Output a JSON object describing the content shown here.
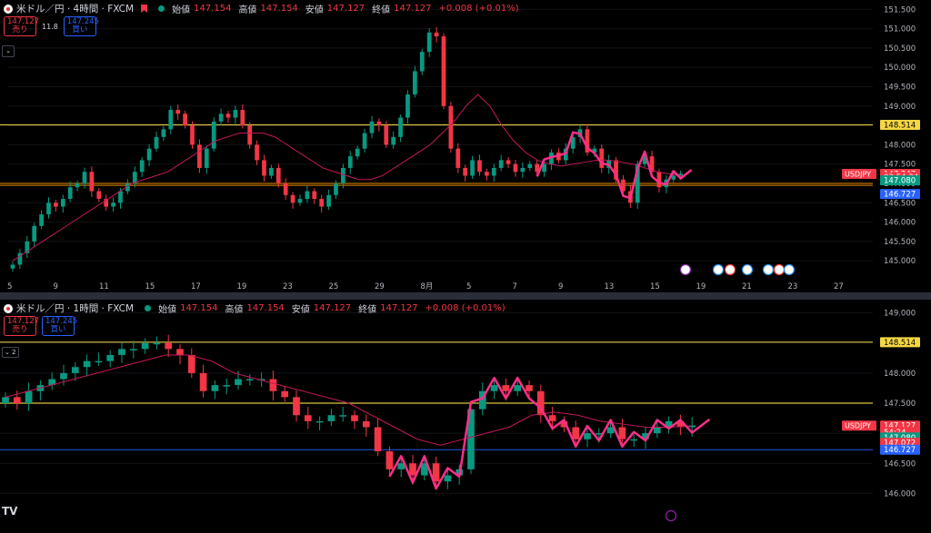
{
  "colors": {
    "up": "#089981",
    "down": "#f23645",
    "ma": "#c2185b",
    "hline_yellow": "#f5d742",
    "hline_orange": "#ff9800",
    "hline_blue": "#2962ff",
    "drawing": "#ff2d8a",
    "bg": "#000000",
    "axis_text": "#b2b5be"
  },
  "top_pane": {
    "symbol": "米ドル／円 · 4時間 · FXCM",
    "ohlc": [
      {
        "label": "始値",
        "value": "147.154"
      },
      {
        "label": "高値",
        "value": "147.154"
      },
      {
        "label": "安値",
        "value": "147.127"
      },
      {
        "label": "終値",
        "value": "147.127"
      },
      {
        "label": "",
        "value": "+0.008 (+0.01%)"
      }
    ],
    "sell_price": "147.127",
    "sell_label": "売り",
    "spread": "11.8",
    "buy_price": "147.245",
    "buy_label": "買い",
    "collapse": "⌄",
    "price_ticks": [
      "151.500",
      "151.000",
      "150.500",
      "150.000",
      "149.500",
      "149.000",
      "148.500",
      "148.000",
      "147.500",
      "147.000",
      "146.500",
      "146.000",
      "145.500",
      "145.000"
    ],
    "date_ticks": [
      "5",
      "9",
      "11",
      "15",
      "17",
      "19",
      "23",
      "25",
      "29",
      "8月",
      "5",
      "7",
      "9",
      "13",
      "15",
      "19",
      "21",
      "23",
      "27"
    ],
    "price_tags": [
      {
        "text": "148.514",
        "kind": "yellow",
        "price": 148.514
      },
      {
        "text": "147.247",
        "kind": "red",
        "price": 147.247
      },
      {
        "text": "03:54:24",
        "kind": "red-sub",
        "price": 147.16
      },
      {
        "text": "147.080",
        "kind": "green",
        "price": 147.08
      },
      {
        "text": "146.727",
        "kind": "blue",
        "price": 146.727
      }
    ],
    "symbol_tag": "USDJPY"
  },
  "bottom_pane": {
    "symbol": "米ドル／円 · 1時間 · FXCM",
    "ohlc": [
      {
        "label": "始値",
        "value": "147.154"
      },
      {
        "label": "高値",
        "value": "147.154"
      },
      {
        "label": "安値",
        "value": "147.127"
      },
      {
        "label": "終値",
        "value": "147.127"
      },
      {
        "label": "",
        "value": "+0.008 (+0.01%)"
      }
    ],
    "sell_price": "147.127",
    "sell_label": "売り",
    "buy_price": "147.245",
    "buy_label": "買い",
    "collapse": "⌄ 2",
    "price_ticks": [
      "149.000",
      "148.500",
      "148.000",
      "147.500",
      "147.000",
      "146.500",
      "146.000"
    ],
    "price_tags": [
      {
        "text": "148.514",
        "kind": "yellow",
        "price": 148.514
      },
      {
        "text": "147.127",
        "kind": "red",
        "price": 147.127
      },
      {
        "text": "54:24",
        "kind": "red-sub",
        "price": 147.02
      },
      {
        "text": "147.080",
        "kind": "green",
        "price": 146.93
      },
      {
        "text": "147.072",
        "kind": "red",
        "price": 146.84
      },
      {
        "text": "146.727",
        "kind": "blue",
        "price": 146.727
      }
    ],
    "symbol_tag": "USDJPY",
    "logo": "TV"
  },
  "chart_data": [
    {
      "type": "candlestick",
      "title": "米ドル／円 · 4時間 · FXCM",
      "ylim": [
        144.7,
        151.6
      ],
      "hlines": [
        {
          "price": 148.514,
          "color": "yellow"
        },
        {
          "price": 147.0,
          "color": "orange"
        },
        {
          "price": 146.95,
          "color": "orange"
        }
      ],
      "closes": [
        144.9,
        145.2,
        145.5,
        145.9,
        146.2,
        146.5,
        146.4,
        146.6,
        146.9,
        147.0,
        147.3,
        146.8,
        146.6,
        146.4,
        146.5,
        146.8,
        147.0,
        147.3,
        147.6,
        147.9,
        148.2,
        148.4,
        148.9,
        148.8,
        148.5,
        148.0,
        147.4,
        147.9,
        148.6,
        148.8,
        148.7,
        148.9,
        148.5,
        148.0,
        147.6,
        147.2,
        147.4,
        147.0,
        146.7,
        146.5,
        146.6,
        146.8,
        146.6,
        146.4,
        146.7,
        147.0,
        147.4,
        147.7,
        147.9,
        148.3,
        148.6,
        148.5,
        148.0,
        148.2,
        148.7,
        149.3,
        149.9,
        150.4,
        150.9,
        150.8,
        149.0,
        147.9,
        147.4,
        147.2,
        147.6,
        147.3,
        147.2,
        147.4,
        147.6,
        147.5,
        147.3,
        147.4,
        147.5,
        147.3,
        147.5,
        147.8,
        147.6,
        147.9,
        148.2,
        148.4,
        147.8,
        147.9,
        147.4,
        147.6,
        147.1,
        146.8,
        146.5,
        147.5,
        147.7,
        147.3,
        146.9,
        147.1,
        147.2,
        147.25
      ],
      "ma": [
        145.0,
        145.2,
        145.4,
        145.6,
        145.8,
        146.0,
        146.2,
        146.4,
        146.6,
        146.8,
        147.0,
        147.1,
        147.2,
        147.3,
        147.5,
        147.7,
        147.9,
        148.1,
        148.2,
        148.3,
        148.3,
        148.3,
        148.2,
        148.0,
        147.8,
        147.6,
        147.4,
        147.3,
        147.2,
        147.1,
        147.1,
        147.2,
        147.4,
        147.6,
        147.8,
        148.0,
        148.3,
        148.6,
        149.0,
        149.3,
        149.0,
        148.5,
        148.1,
        147.8,
        147.6,
        147.5,
        147.45,
        147.5,
        147.55,
        147.6,
        147.6,
        147.55,
        147.5,
        147.4,
        147.3,
        147.25,
        147.2
      ]
    },
    {
      "type": "candlestick",
      "title": "米ドル／円 · 1時間 · FXCM",
      "ylim": [
        145.9,
        149.1
      ],
      "hlines": [
        {
          "price": 148.514,
          "color": "yellow"
        },
        {
          "price": 147.5,
          "color": "yellow"
        },
        {
          "price": 146.727,
          "color": "blue"
        }
      ],
      "closes": [
        147.6,
        147.5,
        147.7,
        147.8,
        147.9,
        148.0,
        148.1,
        148.2,
        148.2,
        148.3,
        148.4,
        148.4,
        148.5,
        148.5,
        148.4,
        148.3,
        148.0,
        147.7,
        147.8,
        147.8,
        147.9,
        147.9,
        147.9,
        147.7,
        147.6,
        147.3,
        147.2,
        147.2,
        147.3,
        147.3,
        147.2,
        147.1,
        146.7,
        146.4,
        146.5,
        146.3,
        146.5,
        146.2,
        146.3,
        146.4,
        147.4,
        147.7,
        147.8,
        147.7,
        147.8,
        147.7,
        147.3,
        147.2,
        147.1,
        146.9,
        147.0,
        147.0,
        147.1,
        146.9,
        146.9,
        147.0,
        147.1,
        147.2,
        147.1,
        147.13
      ],
      "ma": [
        147.6,
        147.7,
        147.8,
        147.9,
        148.0,
        148.1,
        148.2,
        148.3,
        148.3,
        148.2,
        148.0,
        147.9,
        147.8,
        147.7,
        147.6,
        147.5,
        147.3,
        147.1,
        146.9,
        146.8,
        146.9,
        147.0,
        147.1,
        147.3,
        147.35,
        147.3,
        147.2,
        147.15,
        147.1,
        147.1,
        147.12
      ]
    }
  ]
}
